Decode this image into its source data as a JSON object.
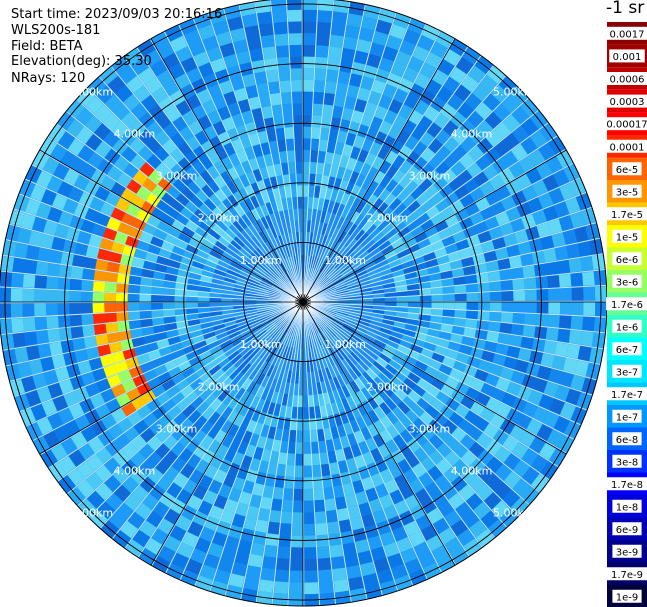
{
  "header": {
    "start_time": "Start time: 2023/09/03 20:16:16",
    "device": "WLS200s-181",
    "field": "Field: BETA",
    "elevation": "Elevation(deg): 35.30",
    "nrays": "NRays: 120"
  },
  "chart_data": {
    "type": "heatmap",
    "projection": "polar",
    "grid": true,
    "colorbar_unit": "-1 sr",
    "colorbar_position": "right",
    "range_rings": [
      "1.00km",
      "2.00km",
      "3.00km",
      "4.00km",
      "5.00km"
    ],
    "range_ring_km": [
      1,
      2,
      3,
      4,
      5
    ],
    "max_range_km": 5.1,
    "n_rays": 120,
    "ray_spokes_deg": [
      0,
      30,
      60,
      90,
      120,
      150,
      180,
      210,
      240,
      270,
      300,
      330
    ],
    "ring_label_bearings_deg": [
      -45,
      45,
      -135,
      135
    ],
    "colorbar": [
      {
        "label": "0.0017",
        "color": "#8b0000"
      },
      {
        "label": "0.001",
        "color": "#a00000"
      },
      {
        "label": "0.0006",
        "color": "#c00000"
      },
      {
        "label": "0.0003",
        "color": "#e00000"
      },
      {
        "label": "0.00017",
        "color": "#ff0000"
      },
      {
        "label": "0.0001",
        "color": "#ff2800"
      },
      {
        "label": "6e-5",
        "color": "#ff6400"
      },
      {
        "label": "3e-5",
        "color": "#ff9600"
      },
      {
        "label": "1.7e-5",
        "color": "#ffc800"
      },
      {
        "label": "1e-5",
        "color": "#ffff00"
      },
      {
        "label": "6e-6",
        "color": "#c8ff32"
      },
      {
        "label": "3e-6",
        "color": "#96ff64"
      },
      {
        "label": "1.7e-6",
        "color": "#64ff96"
      },
      {
        "label": "1e-6",
        "color": "#32ffc8"
      },
      {
        "label": "6e-7",
        "color": "#00ffff"
      },
      {
        "label": "3e-7",
        "color": "#00e6ff"
      },
      {
        "label": "1.7e-7",
        "color": "#00c8ff"
      },
      {
        "label": "1e-7",
        "color": "#0096ff"
      },
      {
        "label": "6e-8",
        "color": "#0064ff"
      },
      {
        "label": "3e-8",
        "color": "#0032ff"
      },
      {
        "label": "1.7e-8",
        "color": "#0000ff"
      },
      {
        "label": "1e-8",
        "color": "#0000dc"
      },
      {
        "label": "6e-9",
        "color": "#0000b4"
      },
      {
        "label": "3e-9",
        "color": "#00008c"
      },
      {
        "label": "1.7e-9",
        "color": "#000064"
      },
      {
        "label": "1e-9",
        "color": "#00003c"
      }
    ],
    "high_return_arc": {
      "range_km": [
        3.05,
        3.45
      ],
      "bearing_deg": [
        236,
        312
      ],
      "peak_label": "0.0001",
      "description_values": [
        "6e-5",
        "3e-5",
        "1.7e-5",
        "1e-5"
      ]
    }
  }
}
